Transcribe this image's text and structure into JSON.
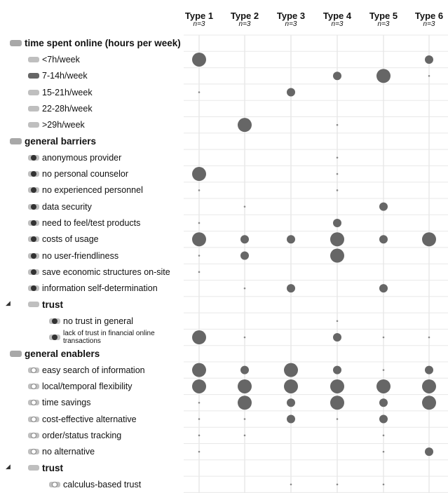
{
  "chart_data": {
    "type": "bubble-matrix",
    "columns": [
      {
        "name": "Type 1",
        "n": "n=3"
      },
      {
        "name": "Type 2",
        "n": "n=3"
      },
      {
        "name": "Type 3",
        "n": "n=3"
      },
      {
        "name": "Type 4",
        "n": "n=3"
      },
      {
        "name": "Type 5",
        "n": "n=3"
      },
      {
        "name": "Type 6",
        "n": "n=3"
      }
    ],
    "rows": [
      {
        "label": "time spent online (hours per week)",
        "level": 0,
        "icon": "code-tag",
        "values": [
          0,
          0,
          0,
          0,
          0,
          0
        ]
      },
      {
        "label": "<7h/week",
        "level": 1,
        "icon": "code-tag",
        "values": [
          3,
          0,
          0,
          0,
          0,
          2
        ]
      },
      {
        "label": "7-14h/week",
        "level": 1,
        "icon": "code-tag-dark",
        "values": [
          0,
          0,
          0,
          2,
          3,
          0.5
        ]
      },
      {
        "label": "15-21h/week",
        "level": 1,
        "icon": "code-tag",
        "values": [
          0.5,
          0,
          2,
          0,
          0,
          0
        ]
      },
      {
        "label": "22-28h/week",
        "level": 1,
        "icon": "code-tag",
        "values": [
          0,
          0,
          0,
          0,
          0,
          0
        ]
      },
      {
        "label": ">29h/week",
        "level": 1,
        "icon": "code-tag",
        "values": [
          0,
          3,
          0,
          0.5,
          0,
          0
        ]
      },
      {
        "label": "general barriers",
        "level": 0,
        "icon": "code-tag",
        "values": [
          0,
          0,
          0,
          0,
          0,
          0
        ]
      },
      {
        "label": "anonymous provider",
        "level": 1,
        "icon": "code-tag-dot",
        "values": [
          0,
          0,
          0,
          0.5,
          0,
          0
        ]
      },
      {
        "label": "no personal counselor",
        "level": 1,
        "icon": "code-tag-dot",
        "values": [
          3,
          0,
          0,
          0.5,
          0,
          0
        ]
      },
      {
        "label": "no experienced personnel",
        "level": 1,
        "icon": "code-tag-dot",
        "values": [
          0.5,
          0,
          0,
          0.5,
          0,
          0
        ]
      },
      {
        "label": "data security",
        "level": 1,
        "icon": "code-tag-dot",
        "values": [
          0,
          0.5,
          0,
          0,
          2,
          0
        ]
      },
      {
        "label": "need to feel/test products",
        "level": 1,
        "icon": "code-tag-dot",
        "values": [
          0.5,
          0,
          0,
          2,
          0,
          0
        ]
      },
      {
        "label": "costs of usage",
        "level": 1,
        "icon": "code-tag-dot",
        "values": [
          3,
          2,
          2,
          3,
          2,
          3
        ]
      },
      {
        "label": "no user-friendliness",
        "level": 1,
        "icon": "code-tag-dot",
        "values": [
          0.5,
          2,
          0,
          3,
          0,
          0
        ]
      },
      {
        "label": "save economic structures on-site",
        "level": 1,
        "icon": "code-tag-dot",
        "values": [
          0.5,
          0,
          0,
          0,
          0,
          0
        ]
      },
      {
        "label": "information self-determination",
        "level": 1,
        "icon": "code-tag-dot",
        "values": [
          0,
          0.5,
          2,
          0,
          2,
          0
        ]
      },
      {
        "label": "trust",
        "level": 1,
        "icon": "code-tag",
        "bold": true,
        "expander": true,
        "values": [
          0,
          0,
          0,
          0,
          0,
          0
        ]
      },
      {
        "label": "no trust in general",
        "level": 2,
        "icon": "code-tag-dot",
        "values": [
          0,
          0,
          0,
          0.5,
          0,
          0
        ]
      },
      {
        "label": "lack of trust in financial online transactions",
        "level": 2,
        "icon": "code-tag-dot",
        "small": true,
        "values": [
          3,
          0.5,
          0,
          2,
          0.5,
          0.5
        ]
      },
      {
        "label": "general enablers",
        "level": 0,
        "icon": "code-tag",
        "values": [
          0,
          0,
          0,
          0,
          0,
          0
        ]
      },
      {
        "label": "easy search of information",
        "level": 1,
        "icon": "code-tag-light",
        "values": [
          3,
          2,
          3,
          2,
          0.5,
          2
        ]
      },
      {
        "label": "local/temporal flexibility",
        "level": 1,
        "icon": "code-tag-light",
        "values": [
          3,
          3,
          3,
          3,
          3,
          3
        ]
      },
      {
        "label": "time savings",
        "level": 1,
        "icon": "code-tag-light",
        "values": [
          0.5,
          3,
          2,
          3,
          2,
          3
        ]
      },
      {
        "label": "cost-effective alternative",
        "level": 1,
        "icon": "code-tag-light",
        "values": [
          0.5,
          0.5,
          2,
          0.5,
          2,
          0
        ]
      },
      {
        "label": "order/status tracking",
        "level": 1,
        "icon": "code-tag-light",
        "values": [
          0.5,
          0.5,
          0,
          0,
          0.5,
          0
        ]
      },
      {
        "label": "no alternative",
        "level": 1,
        "icon": "code-tag-light",
        "values": [
          0.5,
          0,
          0,
          0,
          0.5,
          2
        ]
      },
      {
        "label": "trust",
        "level": 1,
        "icon": "code-tag",
        "bold": true,
        "expander": true,
        "values": [
          0,
          0,
          0,
          0,
          0,
          0
        ]
      },
      {
        "label": "calculus-based trust",
        "level": 2,
        "icon": "code-tag-light",
        "values": [
          0,
          0,
          0.5,
          0.5,
          0.5,
          0
        ]
      }
    ],
    "size_scale": {
      "0.5": "dot",
      "2": "medium",
      "3": "large"
    },
    "colors": {
      "bubble": "#666666",
      "grid": "#dddddd",
      "tag": "#bfbfbf"
    },
    "grid": true
  }
}
